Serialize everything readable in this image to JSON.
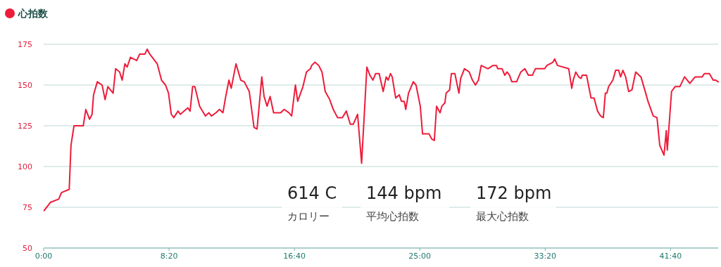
{
  "chart_data": {
    "type": "line",
    "legend": "top left",
    "grid": "y",
    "marker": "none",
    "line_style": "solid",
    "xlim": [
      0,
      2690
    ],
    "ylim": [
      50,
      175
    ],
    "xticks": [
      {
        "value": 0,
        "label": "0:00"
      },
      {
        "value": 500,
        "label": "8:20"
      },
      {
        "value": 1000,
        "label": "16:40"
      },
      {
        "value": 1500,
        "label": "25:00"
      },
      {
        "value": 2000,
        "label": "33:20"
      },
      {
        "value": 2500,
        "label": "41:40"
      }
    ],
    "yticks": [
      50,
      75,
      100,
      125,
      150,
      175
    ],
    "annotations": [
      "614 C",
      "カロリー",
      "144 bpm",
      "平均心拍数",
      "172 bpm",
      "最大心拍数"
    ],
    "x": [
      2,
      27,
      60,
      71,
      102,
      109,
      121,
      158,
      168,
      183,
      193,
      199,
      214,
      233,
      245,
      256,
      277,
      287,
      303,
      313,
      324,
      333,
      346,
      371,
      383,
      404,
      413,
      423,
      453,
      470,
      486,
      498,
      509,
      519,
      536,
      545,
      575,
      584,
      594,
      603,
      622,
      645,
      659,
      669,
      687,
      701,
      715,
      725,
      739,
      748,
      767,
      786,
      800,
      820,
      839,
      851,
      870,
      879,
      891,
      903,
      917,
      945,
      959,
      978,
      989,
      1004,
      1013,
      1034,
      1048,
      1064,
      1069,
      1082,
      1097,
      1110,
      1123,
      1141,
      1155,
      1172,
      1191,
      1207,
      1223,
      1235,
      1252,
      1268,
      1289,
      1301,
      1313,
      1324,
      1338,
      1354,
      1366,
      1374,
      1383,
      1390,
      1404,
      1418,
      1427,
      1438,
      1444,
      1455,
      1474,
      1485,
      1502,
      1511,
      1537,
      1547,
      1558,
      1567,
      1581,
      1588,
      1600,
      1605,
      1619,
      1626,
      1640,
      1656,
      1663,
      1678,
      1697,
      1710,
      1722,
      1734,
      1745,
      1772,
      1792,
      1806,
      1811,
      1828,
      1839,
      1848,
      1858,
      1867,
      1886,
      1903,
      1919,
      1933,
      1949,
      1961,
      1998,
      2007,
      2031,
      2038,
      2049,
      2094,
      2101,
      2106,
      2112,
      2122,
      2134,
      2143,
      2148,
      2165,
      2183,
      2195,
      2209,
      2221,
      2232,
      2240,
      2246,
      2253,
      2270,
      2281,
      2293,
      2301,
      2310,
      2321,
      2333,
      2346,
      2361,
      2382,
      2401,
      2410,
      2431,
      2446,
      2457,
      2474,
      2483,
      2487,
      2504,
      2518,
      2537,
      2556,
      2577,
      2598,
      2626,
      2635,
      2655,
      2670,
      2680,
      2690
    ],
    "series": [
      {
        "name": "心拍数",
        "color": "#ed1c3a",
        "values": [
          73,
          78,
          80,
          84,
          86,
          113,
          125,
          125,
          135,
          129,
          132,
          144,
          152,
          150,
          141,
          149,
          145,
          160,
          158,
          153,
          163,
          161,
          167,
          165,
          169,
          169,
          172,
          169,
          163,
          153,
          150,
          145,
          132,
          130,
          134,
          132,
          136,
          134,
          149,
          149,
          137,
          131,
          133,
          131,
          133,
          135,
          133,
          142,
          153,
          148,
          163,
          153,
          152,
          146,
          124,
          123,
          155,
          143,
          137,
          143,
          133,
          133,
          135,
          133,
          131,
          150,
          140,
          149,
          158,
          160,
          162,
          164,
          162,
          158,
          146,
          141,
          135,
          130,
          130,
          134,
          126,
          126,
          132,
          102,
          161,
          156,
          153,
          157,
          157,
          146,
          155,
          153,
          157,
          155,
          142,
          144,
          140,
          140,
          135,
          145,
          152,
          150,
          137,
          120,
          120,
          117,
          116,
          137,
          133,
          137,
          139,
          145,
          147,
          157,
          157,
          145,
          154,
          160,
          158,
          153,
          150,
          153,
          162,
          160,
          162,
          162,
          160,
          160,
          156,
          158,
          156,
          152,
          152,
          158,
          160,
          156,
          156,
          160,
          160,
          162,
          164,
          166,
          162,
          160,
          153,
          148,
          153,
          158,
          155,
          154,
          156,
          156,
          142,
          142,
          134,
          131,
          130,
          145,
          145,
          149,
          153,
          159,
          159,
          155,
          159,
          155,
          146,
          147,
          158,
          155,
          145,
          140,
          131,
          130,
          113,
          107,
          122,
          110,
          146,
          149,
          149,
          155,
          151,
          155,
          155,
          157,
          157,
          153,
          153,
          152
        ]
      }
    ]
  }
}
